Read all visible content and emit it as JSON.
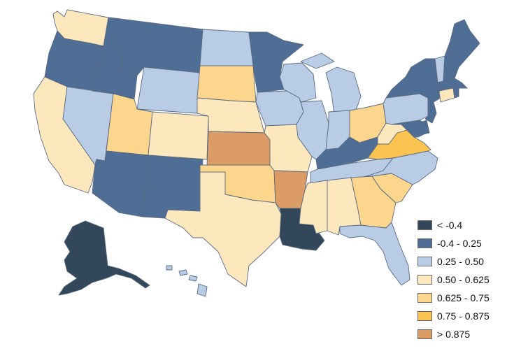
{
  "colors": {
    "c1": "#33475b",
    "c2": "#4f6e96",
    "c3": "#b9cce6",
    "c4": "#fde8bd",
    "c5": "#fcd68c",
    "c6": "#fbc34f",
    "c7": "#dc9c66"
  },
  "legend": [
    {
      "label": "< -0.4",
      "color": "#33475b"
    },
    {
      "label": "-0.4 - 0.25",
      "color": "#4f6e96"
    },
    {
      "label": "0.25 - 0.50",
      "color": "#b9cce6"
    },
    {
      "label": "0.50 - 0.625",
      "color": "#fde8bd"
    },
    {
      "label": "0.625 - 0.75",
      "color": "#fcd68c"
    },
    {
      "label": "0.75 - 0.875",
      "color": "#fbc34f"
    },
    {
      "label": "> 0.875",
      "color": "#dc9c66"
    }
  ],
  "states": [
    {
      "id": "WA",
      "cls": "c4"
    },
    {
      "id": "OR",
      "cls": "c2"
    },
    {
      "id": "CA",
      "cls": "c4"
    },
    {
      "id": "NV",
      "cls": "c3"
    },
    {
      "id": "ID",
      "cls": "c2"
    },
    {
      "id": "MT",
      "cls": "c2"
    },
    {
      "id": "WY",
      "cls": "c3"
    },
    {
      "id": "UT",
      "cls": "c5"
    },
    {
      "id": "AZ",
      "cls": "c2"
    },
    {
      "id": "CO",
      "cls": "c4"
    },
    {
      "id": "NM",
      "cls": "c2"
    },
    {
      "id": "ND",
      "cls": "c3"
    },
    {
      "id": "SD",
      "cls": "c5"
    },
    {
      "id": "NE",
      "cls": "c4"
    },
    {
      "id": "KS",
      "cls": "c7"
    },
    {
      "id": "OK",
      "cls": "c5"
    },
    {
      "id": "TX",
      "cls": "c4"
    },
    {
      "id": "MN",
      "cls": "c2"
    },
    {
      "id": "IA",
      "cls": "c3"
    },
    {
      "id": "MO",
      "cls": "c4"
    },
    {
      "id": "AR",
      "cls": "c7"
    },
    {
      "id": "LA",
      "cls": "c1"
    },
    {
      "id": "WI",
      "cls": "c3"
    },
    {
      "id": "IL",
      "cls": "c3"
    },
    {
      "id": "MI",
      "cls": "c3"
    },
    {
      "id": "IN",
      "cls": "c3"
    },
    {
      "id": "OH",
      "cls": "c5"
    },
    {
      "id": "KY",
      "cls": "c2"
    },
    {
      "id": "TN",
      "cls": "c3"
    },
    {
      "id": "MS",
      "cls": "c4"
    },
    {
      "id": "AL",
      "cls": "c4"
    },
    {
      "id": "GA",
      "cls": "c5"
    },
    {
      "id": "FL",
      "cls": "c3"
    },
    {
      "id": "SC",
      "cls": "c5"
    },
    {
      "id": "NC",
      "cls": "c3"
    },
    {
      "id": "VA",
      "cls": "c6"
    },
    {
      "id": "WV",
      "cls": "c4"
    },
    {
      "id": "PA",
      "cls": "c3"
    },
    {
      "id": "NY",
      "cls": "c2"
    },
    {
      "id": "VT",
      "cls": "c3"
    },
    {
      "id": "NH",
      "cls": "c2"
    },
    {
      "id": "ME",
      "cls": "c2"
    },
    {
      "id": "MA",
      "cls": "c2"
    },
    {
      "id": "CT",
      "cls": "c4"
    },
    {
      "id": "RI",
      "cls": "c2"
    },
    {
      "id": "NJ",
      "cls": "c2"
    },
    {
      "id": "DE",
      "cls": "c2"
    },
    {
      "id": "MD",
      "cls": "c2"
    },
    {
      "id": "AK",
      "cls": "c1"
    },
    {
      "id": "HI",
      "cls": "c3"
    }
  ]
}
